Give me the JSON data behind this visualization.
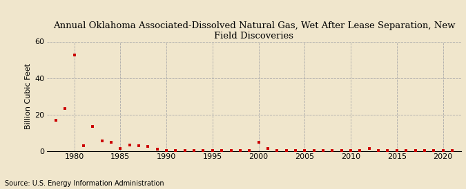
{
  "title": "Annual Oklahoma Associated-Dissolved Natural Gas, Wet After Lease Separation, New Field Discoveries",
  "ylabel": "Billion Cubic Feet",
  "source": "Source: U.S. Energy Information Administration",
  "background_color": "#f0e6cc",
  "marker_color": "#cc0000",
  "xlim": [
    1977,
    2022
  ],
  "ylim": [
    0,
    60
  ],
  "yticks": [
    0,
    20,
    40,
    60
  ],
  "xticks": [
    1980,
    1985,
    1990,
    1995,
    2000,
    2005,
    2010,
    2015,
    2020
  ],
  "years": [
    1978,
    1979,
    1980,
    1981,
    1982,
    1983,
    1984,
    1985,
    1986,
    1987,
    1988,
    1989,
    1990,
    1991,
    1992,
    1993,
    1994,
    1995,
    1996,
    1997,
    1998,
    1999,
    2000,
    2001,
    2002,
    2003,
    2004,
    2005,
    2006,
    2007,
    2008,
    2009,
    2010,
    2011,
    2012,
    2013,
    2014,
    2015,
    2016,
    2017,
    2018,
    2019,
    2020,
    2021
  ],
  "values": [
    17.0,
    23.5,
    52.5,
    3.0,
    13.5,
    5.5,
    5.0,
    1.5,
    3.5,
    3.0,
    2.5,
    1.0,
    0.5,
    0.3,
    0.3,
    0.3,
    0.3,
    0.3,
    0.3,
    0.3,
    0.3,
    0.3,
    5.0,
    1.5,
    0.2,
    0.2,
    0.2,
    0.2,
    0.2,
    0.2,
    0.2,
    0.2,
    0.2,
    0.2,
    1.5,
    0.3,
    0.2,
    0.3,
    0.2,
    0.2,
    0.2,
    0.2,
    0.2,
    0.2
  ],
  "title_fontsize": 9.5,
  "ylabel_fontsize": 8,
  "tick_fontsize": 8,
  "source_fontsize": 7
}
